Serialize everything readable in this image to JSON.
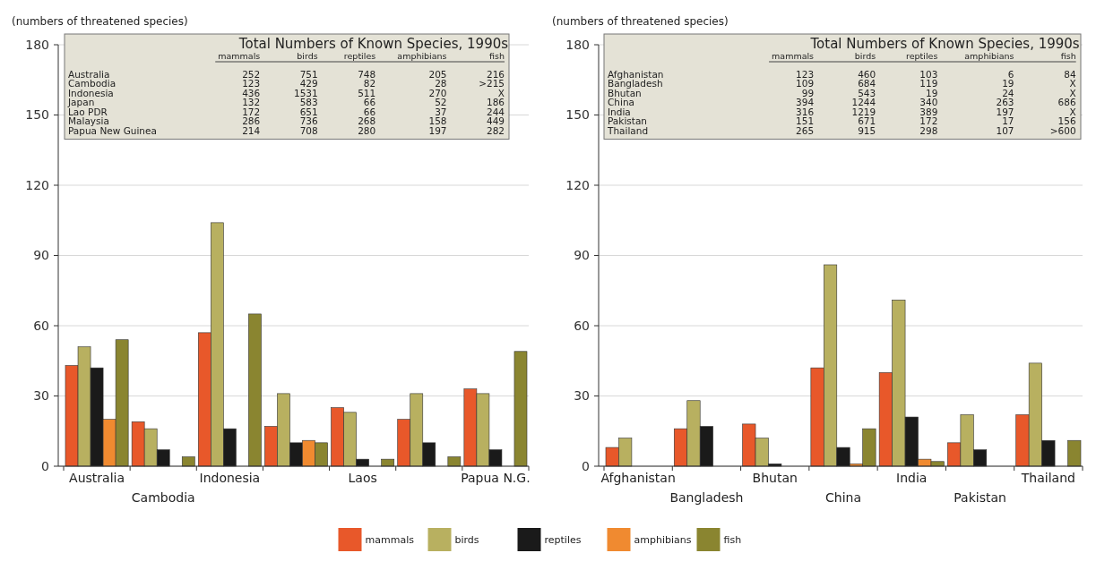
{
  "chart_data": [
    {
      "type": "bar",
      "ylabel": "(numbers of threatened species)",
      "categories": [
        "Australia",
        "Cambodia",
        "Indonesia",
        null,
        "Laos",
        null,
        "Papua N.G."
      ],
      "series": [
        {
          "color": "#e8582a",
          "values": [
            43,
            19,
            57,
            17,
            25,
            20,
            33
          ]
        },
        {
          "color": "#b8b060",
          "values": [
            51,
            16,
            104,
            31,
            23,
            31,
            31
          ]
        },
        {
          "color": "#1a1a1a",
          "values": [
            42,
            7,
            16,
            10,
            3,
            10,
            7
          ]
        },
        {
          "color": "#f08a30",
          "values": [
            20,
            0,
            0,
            11,
            0,
            0,
            0
          ]
        },
        {
          "color": "#8a8530",
          "values": [
            54,
            4,
            65,
            10,
            3,
            4,
            49
          ]
        }
      ],
      "ylim": [
        0,
        180
      ],
      "yticks": [
        0,
        30,
        60,
        90,
        120,
        150,
        180
      ],
      "grid": "y",
      "annotations": [
        "Total Numbers of Known Species, 1990s",
        "mammals birds reptiles amphibians fish",
        "Australia 252 751 748 205 216",
        "Cambodia 123 429 82 28 >215",
        "Indonesia 436 1531 511 270 X",
        "Japan 132 583 66 52 186",
        "Lao PDR 172 651 66 37 244",
        "Malaysia 286 736 268 158 449",
        "Papua New Guinea 214 708 280 197 282"
      ]
    },
    {
      "type": "bar",
      "ylabel": "(numbers of threatened species)",
      "categories": [
        "Afghanistan",
        "Bangladesh",
        "Bhutan",
        "China",
        "India",
        "Pakistan",
        "Thailand"
      ],
      "series": [
        {
          "name": "mammals",
          "color": "#e8582a",
          "values": [
            8,
            16,
            18,
            42,
            40,
            10,
            22
          ]
        },
        {
          "name": "birds",
          "color": "#b8b060",
          "values": [
            12,
            28,
            12,
            86,
            71,
            22,
            44
          ]
        },
        {
          "name": "reptiles",
          "color": "#1a1a1a",
          "values": [
            0,
            17,
            1,
            8,
            21,
            7,
            11
          ]
        },
        {
          "name": "amphibians",
          "color": "#f08a30",
          "values": [
            0,
            0,
            0,
            1,
            3,
            0,
            0
          ]
        },
        {
          "name": "fish",
          "color": "#8a8530",
          "values": [
            0,
            0,
            0,
            16,
            2,
            0,
            11
          ]
        }
      ],
      "ylim": [
        0,
        180
      ],
      "yticks": [
        0,
        30,
        60,
        90,
        120,
        150,
        180
      ],
      "grid": "y",
      "legend": "bottom",
      "annotations": [
        "Total Numbers of Known Species, 1990s",
        "mammals birds reptiles amphibians fish",
        "Afghanistan 123 460 103 6 84",
        "Bangladesh 109 684 119 19 X",
        "Bhutan 99 543 19 24 X",
        "China 394 1244 340 263 686",
        "India 316 1219 389 197 X",
        "Pakistan 151 671 172 17 156",
        "Thailand 265 915 298 107 >600"
      ]
    }
  ]
}
